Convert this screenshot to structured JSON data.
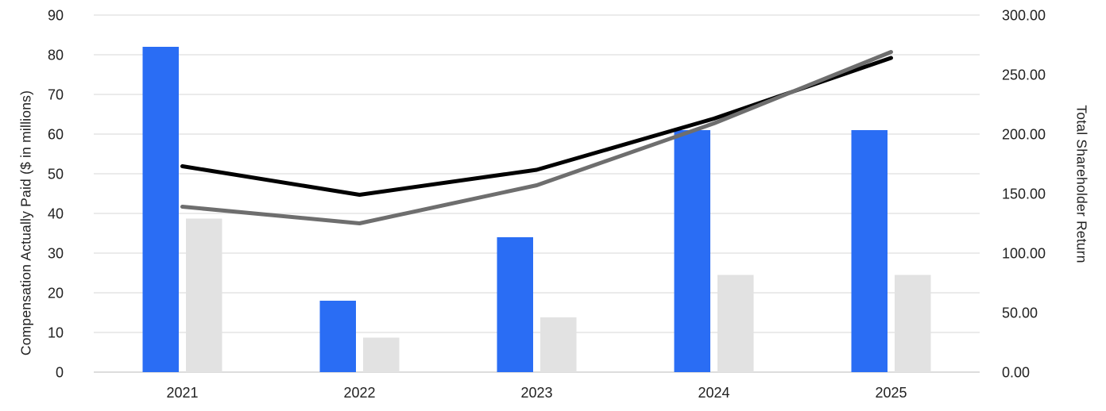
{
  "chart_data": {
    "type": "combo-bar-line",
    "title": "",
    "categories": [
      "2021",
      "2022",
      "2023",
      "2024",
      "2025"
    ],
    "bar_series": [
      {
        "name": "blue bars",
        "color": "#2A6DF4",
        "axis": "left",
        "values": [
          82,
          18,
          34,
          61,
          61
        ]
      },
      {
        "name": "gray bars",
        "color": "#E2E2E2",
        "axis": "left",
        "values": [
          38.7,
          8.7,
          13.8,
          24.5,
          24.5
        ]
      }
    ],
    "line_series": [
      {
        "name": "black line",
        "color": "#000000",
        "axis": "right",
        "values": [
          173,
          149,
          170,
          213,
          264
        ]
      },
      {
        "name": "gray line",
        "color": "#6E6E6E",
        "axis": "right",
        "values": [
          139,
          125,
          157,
          209,
          269
        ]
      }
    ],
    "left_axis": {
      "label": "Compensation Actually Paid ($ in millions)",
      "min": 0,
      "max": 90,
      "step": 10,
      "tick_labels": [
        "0",
        "10",
        "20",
        "30",
        "40",
        "50",
        "60",
        "70",
        "80",
        "90"
      ]
    },
    "right_axis": {
      "label": "Total Shareholder Return",
      "min": 0,
      "max": 300,
      "step": 50,
      "tick_labels": [
        "0.00",
        "50.00",
        "100.00",
        "150.00",
        "200.00",
        "250.00",
        "300.00"
      ]
    },
    "grid": true,
    "legend": "none",
    "background": "#FFFFFF",
    "gridline_color": "#EBEBEB",
    "baseline_color": "#DCDCDC",
    "text_color": "#212121"
  }
}
